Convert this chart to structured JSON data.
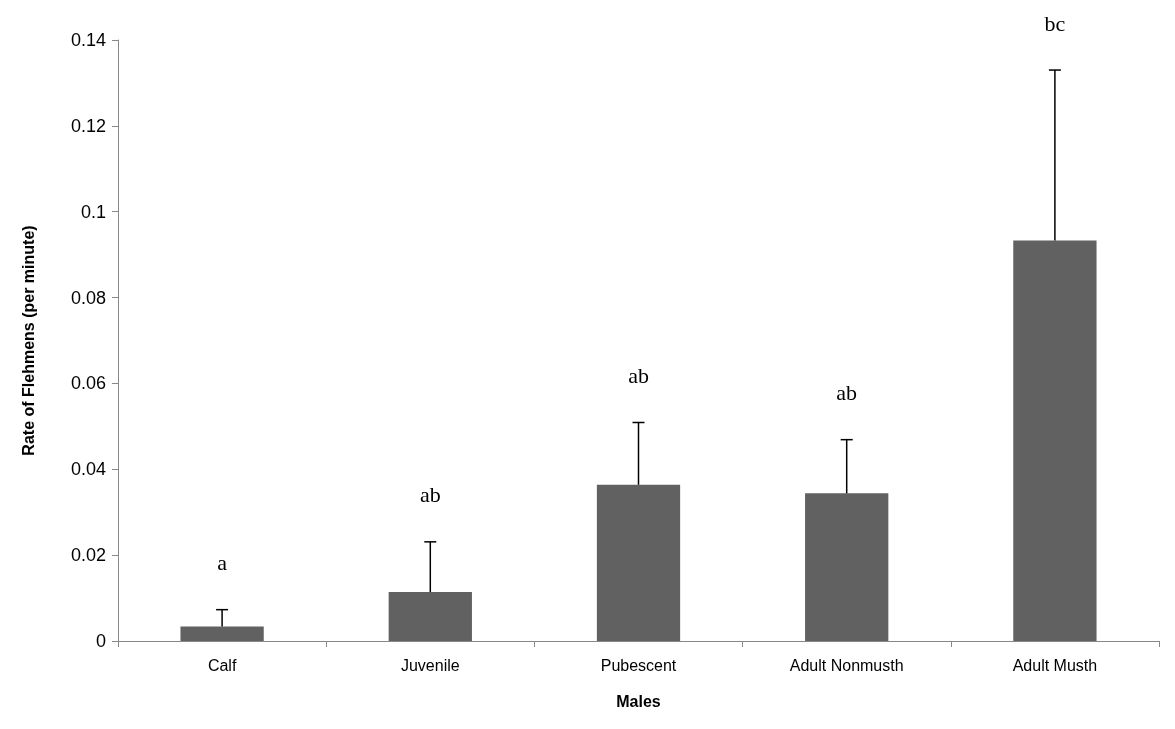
{
  "chart_data": {
    "type": "bar",
    "xlabel": "Males",
    "ylabel": "Rate of Flehmens (per minute)",
    "categories": [
      "Calf",
      "Juvenile",
      "Pubescent",
      "Adult Nonmusth",
      "Adult Musth"
    ],
    "values": [
      0.0034,
      0.0114,
      0.0364,
      0.0344,
      0.0933
    ],
    "errors": [
      [
        0.0034,
        0.0073
      ],
      [
        0.0114,
        0.0231
      ],
      [
        0.0364,
        0.0509
      ],
      [
        0.0344,
        0.0469
      ],
      [
        0.0933,
        0.133
      ]
    ],
    "color": "#616161",
    "ylim": [
      0,
      0.14
    ],
    "yticks": [
      0,
      0.02,
      0.04,
      0.06,
      0.08,
      0.1,
      0.12,
      0.14
    ],
    "annotations": [
      "a",
      "ab",
      "ab",
      "ab",
      "bc"
    ]
  }
}
